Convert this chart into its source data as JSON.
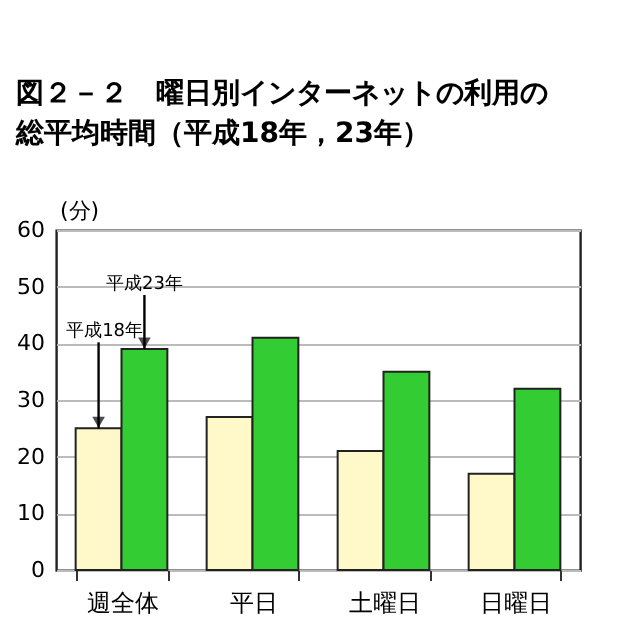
{
  "chart_data": {
    "type": "bar",
    "title": "図２－２　曜日別インターネットの利用の総平均時間（平成18年，23年）",
    "ylabel": "(分)",
    "categories": [
      "週全体",
      "平日",
      "土曜日",
      "日曜日"
    ],
    "series": [
      {
        "name": "平成18年",
        "color": "#fff8c8",
        "values": [
          25,
          27,
          21,
          17
        ]
      },
      {
        "name": "平成23年",
        "color": "#33cc33",
        "values": [
          39,
          41,
          35,
          32
        ]
      }
    ],
    "ylim": [
      0,
      60
    ],
    "yticks": [
      0,
      10,
      20,
      30,
      40,
      50,
      60
    ],
    "grid": "y",
    "legend": false
  }
}
